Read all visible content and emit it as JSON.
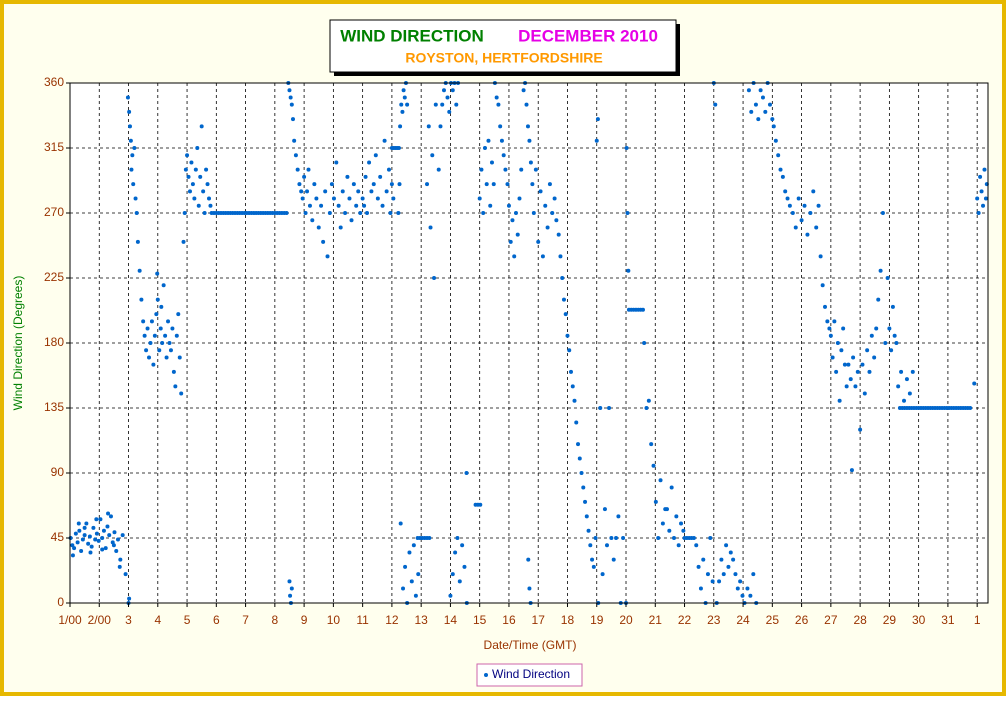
{
  "chart_data": {
    "type": "scatter",
    "title": "WIND DIRECTION",
    "title_date": "DECEMBER 2010",
    "subtitle": "ROYSTON, HERTFORDSHIRE",
    "xlabel": "Date/Time (GMT)",
    "ylabel": "Wind Direction (Degrees)",
    "xlim": [
      1,
      32.37
    ],
    "ylim": [
      0,
      360
    ],
    "yticks": [
      0,
      45,
      90,
      135,
      180,
      225,
      270,
      315,
      360
    ],
    "xticks": [
      {
        "value": 1,
        "label": "1/00"
      },
      {
        "value": 2,
        "label": "2/00"
      },
      3,
      4,
      5,
      6,
      7,
      8,
      9,
      10,
      11,
      12,
      13,
      14,
      15,
      16,
      17,
      18,
      19,
      20,
      21,
      22,
      23,
      24,
      25,
      26,
      27,
      28,
      29,
      30,
      31,
      {
        "value": 32,
        "label": "1"
      }
    ],
    "grid": true,
    "legend": "bottom",
    "x": [
      1.02,
      1.08,
      1.14,
      1.2,
      1.26,
      1.32,
      1.38,
      1.44,
      1.5,
      1.56,
      1.62,
      1.68,
      1.74,
      1.8,
      1.86,
      1.92,
      1.98,
      2.04,
      2.1,
      2.16,
      2.22,
      2.28,
      2.34,
      2.4,
      2.46,
      2.52,
      2.58,
      2.64,
      2.72,
      2.8,
      1.1,
      1.3,
      1.5,
      1.7,
      1.9,
      2.1,
      2.3,
      2.5,
      2.7,
      2.9,
      2.98,
      3.02,
      3.05,
      3.08,
      3.1,
      3.13,
      3.16,
      3.2,
      3.24,
      3.28,
      3.32,
      3.38,
      3.44,
      3.5,
      3.0,
      3.02,
      3.55,
      3.6,
      3.65,
      3.7,
      3.75,
      3.8,
      3.85,
      3.9,
      3.95,
      4.0,
      4.05,
      4.1,
      4.15,
      4.2,
      4.25,
      4.3,
      4.35,
      4.4,
      4.45,
      4.5,
      4.55,
      4.6,
      4.65,
      4.7,
      4.75,
      4.8,
      3.98,
      4.12,
      4.88,
      4.92,
      4.96,
      5.0,
      5.05,
      5.1,
      5.15,
      5.2,
      5.25,
      5.3,
      5.35,
      5.4,
      5.45,
      5.5,
      5.55,
      5.6,
      5.65,
      5.7,
      5.75,
      5.8,
      5.84,
      5.92,
      6.0,
      6.08,
      6.16,
      6.24,
      6.32,
      6.4,
      6.48,
      6.56,
      6.64,
      6.72,
      6.8,
      6.88,
      6.96,
      7.04,
      7.12,
      7.2,
      7.28,
      7.36,
      7.44,
      7.52,
      7.6,
      7.68,
      7.76,
      7.84,
      7.92,
      8.0,
      8.08,
      8.16,
      8.24,
      8.32,
      8.4,
      8.46,
      8.5,
      8.54,
      8.58,
      8.62,
      8.66,
      8.72,
      8.78,
      8.84,
      8.9,
      8.5,
      8.52,
      8.55,
      8.58,
      8.95,
      9.0,
      9.05,
      9.1,
      9.15,
      9.2,
      9.28,
      9.35,
      9.42,
      9.5,
      9.58,
      9.65,
      9.72,
      9.8,
      9.88,
      9.95,
      10.02,
      10.1,
      10.18,
      10.25,
      10.32,
      10.4,
      10.48,
      10.55,
      10.62,
      10.7,
      10.78,
      10.85,
      10.92,
      11.0,
      11.05,
      11.1,
      11.15,
      11.22,
      11.3,
      11.38,
      11.45,
      11.52,
      11.6,
      11.68,
      11.75,
      11.82,
      11.9,
      11.95,
      12.0,
      12.05,
      12.0,
      12.06,
      12.12,
      12.18,
      12.24,
      12.28,
      12.32,
      12.36,
      12.4,
      12.44,
      12.48,
      12.52,
      12.3,
      12.38,
      12.45,
      12.52,
      12.6,
      12.68,
      12.75,
      12.82,
      12.9,
      12.22,
      12.26,
      12.88,
      12.96,
      13.04,
      13.12,
      13.2,
      13.28,
      13.2,
      13.26,
      13.32,
      13.38,
      13.44,
      13.5,
      13.6,
      13.66,
      13.72,
      13.78,
      13.84,
      13.9,
      13.96,
      14.02,
      14.08,
      14.14,
      14.2,
      14.26,
      14.0,
      14.08,
      14.16,
      14.24,
      14.32,
      14.4,
      14.48,
      14.56,
      14.55,
      14.86,
      14.94,
      15.02,
      15.0,
      15.06,
      15.12,
      15.18,
      15.24,
      15.3,
      15.36,
      15.42,
      15.48,
      15.52,
      15.58,
      15.64,
      15.7,
      15.76,
      15.82,
      15.88,
      15.95,
      16.0,
      16.06,
      16.12,
      16.18,
      16.24,
      16.3,
      16.36,
      16.42,
      16.5,
      16.55,
      16.6,
      16.65,
      16.7,
      16.75,
      16.8,
      16.66,
      16.7,
      16.74,
      16.85,
      16.92,
      17.0,
      17.08,
      17.16,
      17.24,
      17.32,
      17.4,
      17.48,
      17.56,
      17.62,
      17.7,
      17.76,
      17.82,
      17.88,
      17.94,
      18.0,
      18.06,
      18.12,
      18.18,
      18.24,
      18.3,
      18.36,
      18.42,
      18.48,
      18.54,
      18.6,
      18.66,
      18.72,
      18.78,
      18.84,
      18.9,
      18.96,
      19.0,
      19.04,
      19.05,
      19.12,
      19.2,
      19.28,
      19.35,
      19.42,
      19.5,
      19.58,
      19.66,
      19.74,
      19.82,
      19.9,
      20.0,
      20.02,
      20.05,
      20.08,
      20.1,
      20.18,
      20.26,
      20.34,
      20.42,
      20.5,
      20.58,
      20.62,
      20.7,
      20.78,
      20.86,
      20.94,
      21.02,
      21.1,
      21.18,
      21.26,
      21.34,
      21.4,
      21.48,
      21.56,
      21.64,
      21.72,
      21.8,
      21.88,
      21.96,
      22.0,
      22.08,
      22.16,
      22.24,
      22.32,
      22.4,
      22.48,
      22.56,
      22.64,
      22.72,
      22.8,
      22.88,
      22.96,
      23.0,
      23.05,
      23.1,
      23.18,
      23.26,
      23.34,
      23.42,
      23.5,
      23.58,
      23.66,
      23.74,
      23.82,
      23.9,
      23.98,
      24.05,
      24.15,
      24.25,
      24.35,
      24.45,
      24.2,
      24.28,
      24.36,
      24.44,
      24.52,
      24.6,
      24.68,
      24.76,
      24.84,
      24.92,
      25.0,
      25.05,
      25.12,
      25.2,
      25.28,
      25.36,
      25.44,
      25.52,
      25.6,
      25.7,
      25.8,
      25.9,
      26.0,
      26.1,
      26.2,
      26.3,
      26.4,
      26.5,
      26.58,
      26.65,
      26.72,
      26.8,
      26.88,
      26.95,
      27.0,
      27.06,
      27.12,
      27.18,
      27.24,
      27.3,
      27.36,
      27.42,
      27.48,
      27.54,
      27.6,
      27.68,
      27.76,
      27.84,
      27.92,
      28.0,
      28.08,
      28.16,
      28.24,
      28.32,
      28.4,
      28.48,
      27.72,
      28.55,
      28.62,
      28.7,
      28.78,
      28.86,
      28.94,
      29.0,
      29.06,
      29.12,
      29.18,
      29.24,
      29.3,
      29.4,
      29.5,
      29.6,
      29.7,
      29.8,
      29.36,
      29.44,
      29.52,
      29.6,
      29.68,
      29.76,
      29.84,
      29.92,
      30.0,
      30.08,
      30.16,
      30.24,
      30.32,
      30.4,
      30.48,
      30.56,
      30.64,
      30.72,
      30.8,
      30.88,
      30.96,
      31.04,
      31.12,
      31.2,
      31.28,
      31.36,
      31.44,
      31.52,
      31.6,
      31.68,
      31.76,
      31.9,
      32.0,
      32.05,
      32.1,
      32.15,
      32.2,
      32.25,
      32.3,
      32.33
    ],
    "series": [
      {
        "name": "Wind Direction",
        "color": "#0066cc",
        "values": [
          45,
          40,
          38,
          48,
          42,
          50,
          36,
          44,
          47,
          55,
          41,
          46,
          39,
          52,
          44,
          48,
          43,
          58,
          45,
          50,
          38,
          53,
          47,
          60,
          42,
          49,
          36,
          44,
          30,
          47,
          33,
          55,
          52,
          35,
          58,
          37,
          62,
          40,
          25,
          20,
          350,
          340,
          330,
          320,
          300,
          310,
          290,
          315,
          280,
          270,
          250,
          230,
          210,
          195,
          0,
          3,
          185,
          175,
          190,
          170,
          180,
          195,
          165,
          185,
          200,
          210,
          175,
          190,
          180,
          220,
          185,
          170,
          195,
          180,
          175,
          190,
          160,
          150,
          185,
          200,
          170,
          145,
          228,
          205,
          250,
          270,
          300,
          310,
          295,
          285,
          305,
          290,
          280,
          300,
          315,
          275,
          295,
          330,
          285,
          270,
          300,
          290,
          280,
          275,
          270,
          270,
          270,
          270,
          270,
          270,
          270,
          270,
          270,
          270,
          270,
          270,
          270,
          270,
          270,
          270,
          270,
          270,
          270,
          270,
          270,
          270,
          270,
          270,
          270,
          270,
          270,
          270,
          270,
          270,
          270,
          270,
          270,
          360,
          355,
          350,
          345,
          335,
          320,
          310,
          300,
          290,
          285,
          15,
          5,
          0,
          10,
          280,
          295,
          270,
          285,
          300,
          275,
          265,
          290,
          280,
          260,
          275,
          250,
          285,
          240,
          270,
          290,
          280,
          305,
          275,
          260,
          285,
          270,
          295,
          280,
          265,
          290,
          275,
          285,
          270,
          280,
          275,
          295,
          270,
          305,
          285,
          290,
          310,
          280,
          295,
          275,
          320,
          285,
          300,
          270,
          290,
          280,
          315,
          315,
          315,
          315,
          315,
          330,
          345,
          340,
          355,
          350,
          360,
          345,
          55,
          10,
          25,
          0,
          35,
          15,
          40,
          5,
          20,
          270,
          290,
          45,
          45,
          45,
          45,
          45,
          45,
          290,
          330,
          260,
          310,
          225,
          345,
          300,
          330,
          345,
          355,
          360,
          350,
          340,
          360,
          355,
          360,
          345,
          360,
          5,
          20,
          35,
          45,
          15,
          40,
          25,
          0,
          90,
          68,
          68,
          68,
          280,
          300,
          270,
          315,
          290,
          320,
          275,
          305,
          290,
          360,
          350,
          345,
          330,
          320,
          310,
          300,
          290,
          275,
          250,
          265,
          240,
          270,
          255,
          280,
          300,
          355,
          360,
          345,
          330,
          320,
          305,
          290,
          30,
          10,
          0,
          270,
          300,
          250,
          285,
          240,
          275,
          260,
          290,
          270,
          280,
          265,
          255,
          240,
          225,
          210,
          200,
          185,
          175,
          160,
          150,
          140,
          125,
          110,
          100,
          90,
          80,
          70,
          60,
          50,
          40,
          30,
          25,
          45,
          320,
          335,
          0,
          135,
          20,
          65,
          40,
          135,
          45,
          30,
          45,
          60,
          0,
          45,
          0,
          315,
          270,
          230,
          203,
          203,
          203,
          203,
          203,
          203,
          203,
          180,
          135,
          140,
          110,
          95,
          70,
          45,
          85,
          55,
          65,
          65,
          50,
          80,
          45,
          60,
          40,
          55,
          50,
          45,
          45,
          45,
          45,
          45,
          40,
          25,
          10,
          30,
          0,
          20,
          45,
          15,
          360,
          345,
          0,
          15,
          30,
          20,
          40,
          25,
          35,
          30,
          20,
          10,
          15,
          5,
          0,
          10,
          5,
          20,
          0,
          355,
          340,
          360,
          345,
          335,
          355,
          350,
          340,
          360,
          345,
          335,
          330,
          320,
          310,
          300,
          295,
          285,
          280,
          275,
          270,
          260,
          280,
          265,
          275,
          255,
          270,
          285,
          260,
          275,
          240,
          220,
          205,
          195,
          190,
          185,
          170,
          195,
          160,
          180,
          140,
          175,
          190,
          165,
          150,
          165,
          155,
          170,
          150,
          160,
          120,
          165,
          145,
          175,
          160,
          185,
          170,
          92,
          190,
          210,
          230,
          270,
          180,
          225,
          190,
          175,
          205,
          185,
          180,
          150,
          160,
          140,
          155,
          145,
          160,
          135,
          135,
          135,
          135,
          135,
          135,
          135,
          135,
          135,
          135,
          135,
          135,
          135,
          135,
          135,
          135,
          135,
          135,
          135,
          135,
          135,
          135,
          135,
          135,
          135,
          135,
          135,
          135,
          135,
          135,
          135,
          152,
          280,
          270,
          295,
          285,
          275,
          300,
          280,
          290
        ]
      }
    ]
  }
}
